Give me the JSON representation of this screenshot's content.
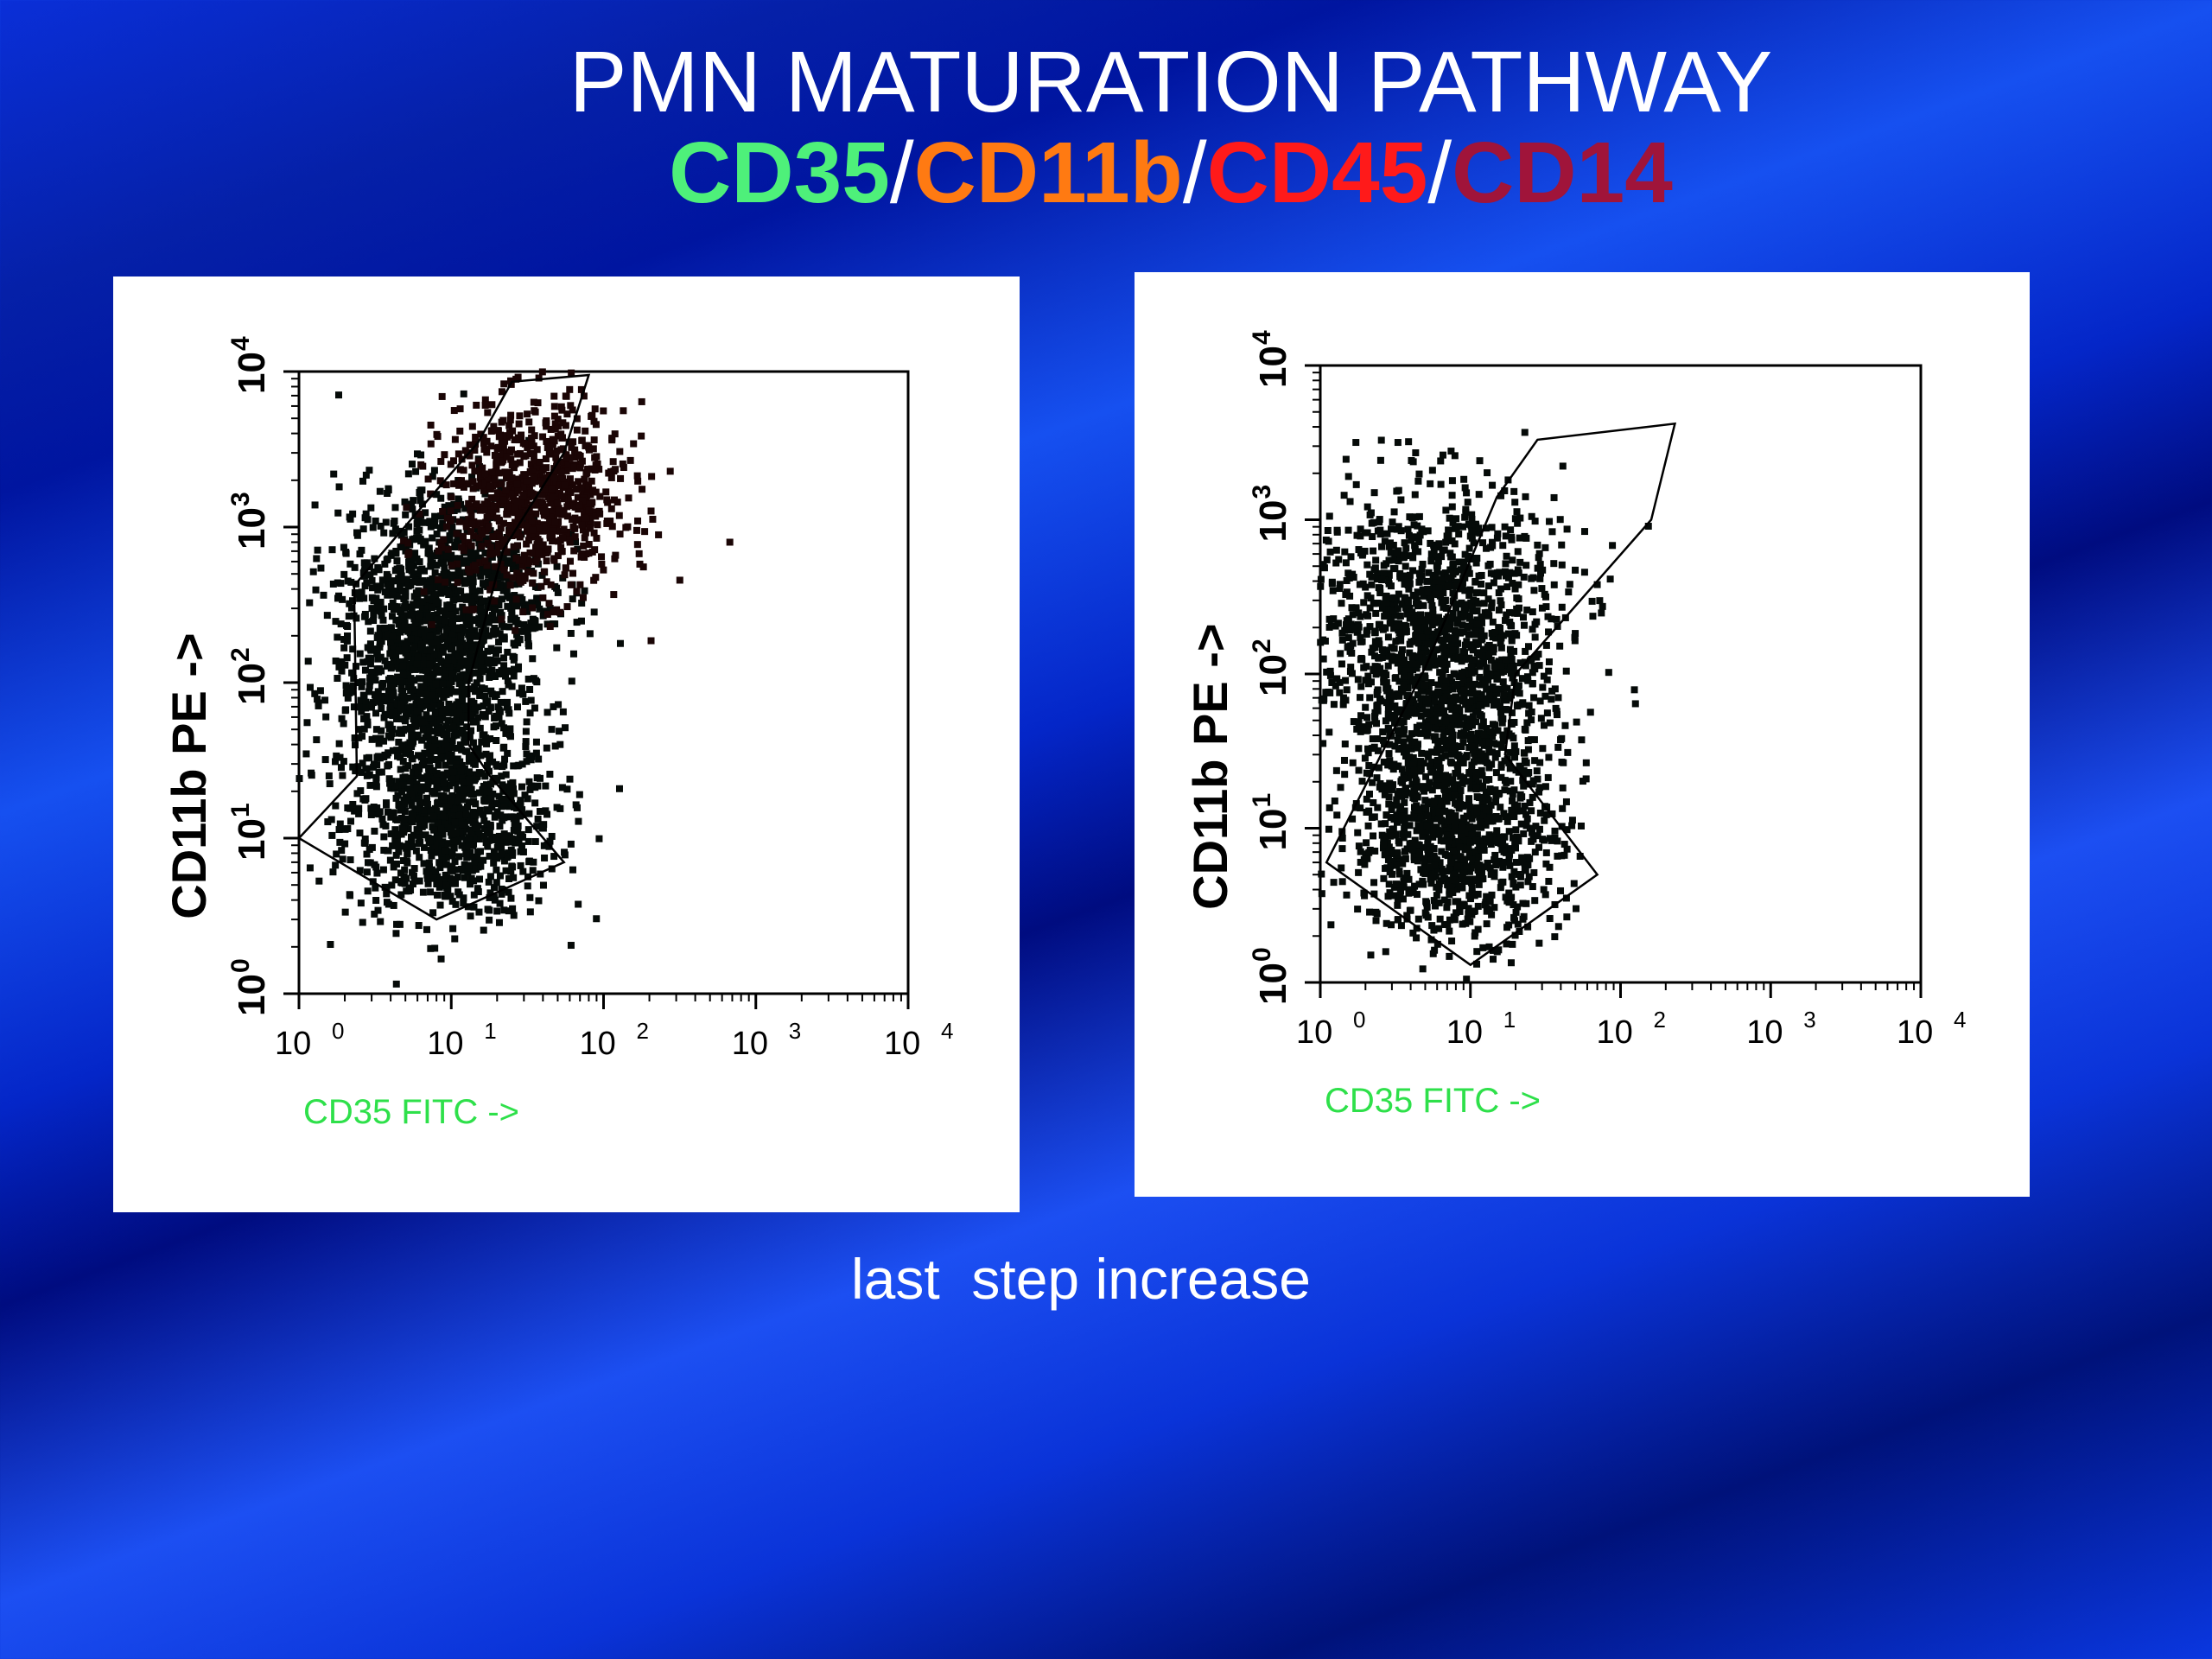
{
  "title": {
    "line1": "PMN MATURATION PATHWAY",
    "markers": [
      {
        "text": "CD35",
        "color": "#4ef07a"
      },
      {
        "text": "CD11b",
        "color": "#ff7a12"
      },
      {
        "text": "CD45",
        "color": "#ff1a1a"
      },
      {
        "text": "CD14",
        "color": "#a0143a"
      }
    ],
    "separator": "/"
  },
  "caption": "last  step increase",
  "chart_data": [
    {
      "type": "scatter",
      "title": "",
      "xlabel": "CD35 FITC ->",
      "ylabel": "CD11b PE ->",
      "x_scale": "log",
      "y_scale": "log",
      "xlim": [
        1,
        10000
      ],
      "ylim": [
        1,
        10000
      ],
      "x_ticks": [
        {
          "base": "10",
          "exp": "0"
        },
        {
          "base": "10",
          "exp": "1"
        },
        {
          "base": "10",
          "exp": "2"
        },
        {
          "base": "10",
          "exp": "3"
        },
        {
          "base": "10",
          "exp": "4"
        }
      ],
      "y_ticks": [
        {
          "base": "10",
          "exp": "0"
        },
        {
          "base": "10",
          "exp": "1"
        },
        {
          "base": "10",
          "exp": "2"
        },
        {
          "base": "10",
          "exp": "3"
        },
        {
          "base": "10",
          "exp": "4"
        }
      ],
      "populations": [
        {
          "x_center": 10,
          "y_center": 12,
          "x_spread_decades": 0.35,
          "y_spread_decades": 0.3
        },
        {
          "x_center": 7,
          "y_center": 90,
          "x_spread_decades": 0.3,
          "y_spread_decades": 0.35
        },
        {
          "x_center": 9,
          "y_center": 400,
          "x_spread_decades": 0.35,
          "y_spread_decades": 0.35
        },
        {
          "x_center": 35,
          "y_center": 1500,
          "x_spread_decades": 0.3,
          "y_spread_decades": 0.3
        }
      ],
      "gate_polygon": [
        [
          1,
          10
        ],
        [
          2.4,
          25
        ],
        [
          2.3,
          420
        ],
        [
          6,
          1250
        ],
        [
          15,
          3500
        ],
        [
          25,
          8600
        ],
        [
          80,
          9500
        ],
        [
          55,
          3000
        ],
        [
          22,
          720
        ],
        [
          13,
          100
        ],
        [
          13,
          40
        ],
        [
          18,
          25
        ],
        [
          55,
          7
        ],
        [
          8,
          3
        ]
      ]
    },
    {
      "type": "scatter",
      "title": "",
      "xlabel": "CD35 FITC ->",
      "ylabel": "CD11b PE ->",
      "x_scale": "log",
      "y_scale": "log",
      "xlim": [
        1,
        10000
      ],
      "ylim": [
        1,
        10000
      ],
      "x_ticks": [
        {
          "base": "10",
          "exp": "0"
        },
        {
          "base": "10",
          "exp": "1"
        },
        {
          "base": "10",
          "exp": "2"
        },
        {
          "base": "10",
          "exp": "3"
        },
        {
          "base": "10",
          "exp": "4"
        }
      ],
      "y_ticks": [
        {
          "base": "10",
          "exp": "0"
        },
        {
          "base": "10",
          "exp": "1"
        },
        {
          "base": "10",
          "exp": "2"
        },
        {
          "base": "10",
          "exp": "3"
        },
        {
          "base": "10",
          "exp": "4"
        }
      ],
      "populations": [
        {
          "x_center": 8,
          "y_center": 8,
          "x_spread_decades": 0.35,
          "y_spread_decades": 0.3
        },
        {
          "x_center": 7,
          "y_center": 60,
          "x_spread_decades": 0.35,
          "y_spread_decades": 0.35
        },
        {
          "x_center": 5,
          "y_center": 300,
          "x_spread_decades": 0.45,
          "y_spread_decades": 0.4
        }
      ],
      "gate_polygon": [
        [
          1.1,
          6
        ],
        [
          5,
          110
        ],
        [
          15,
          1400
        ],
        [
          28,
          3300
        ],
        [
          230,
          4200
        ],
        [
          160,
          1000
        ],
        [
          20,
          100
        ],
        [
          17,
          30
        ],
        [
          70,
          5
        ],
        [
          10,
          1.3
        ]
      ]
    }
  ]
}
